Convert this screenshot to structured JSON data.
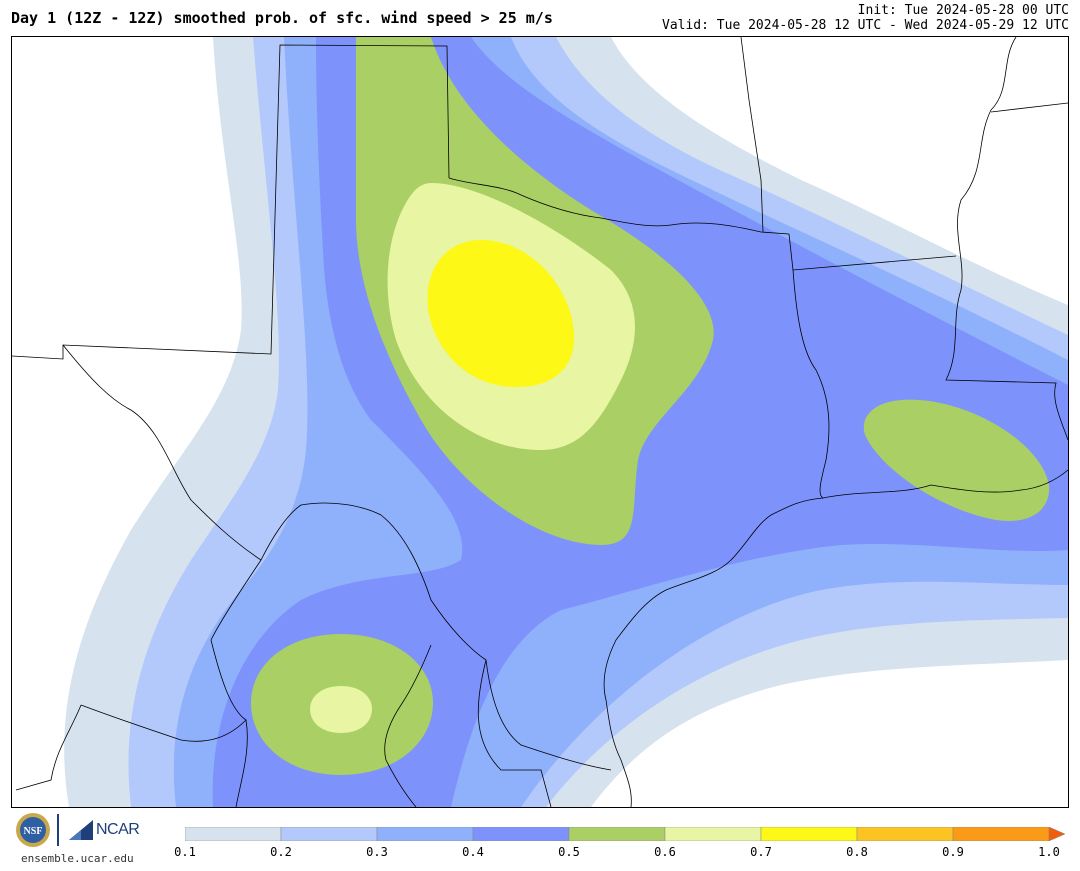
{
  "header": {
    "title": "Day 1 (12Z - 12Z) smoothed prob. of sfc. wind speed > 25 m/s",
    "init": "Init: Tue 2024-05-28 00 UTC",
    "valid": "Valid: Tue 2024-05-28 12 UTC - Wed 2024-05-29 12 UTC"
  },
  "footer": {
    "logo_nsf": "NSF",
    "logo_ncar": "NCAR",
    "site": "ensemble.ucar.edu"
  },
  "colorbar": {
    "ticks": [
      "0.1",
      "0.2",
      "0.3",
      "0.4",
      "0.5",
      "0.6",
      "0.7",
      "0.8",
      "0.9",
      "1.0"
    ],
    "colors": [
      "#d6e2ee",
      "#b3c8fb",
      "#8fb0fb",
      "#7d92fb",
      "#aacf64",
      "#e8f5a2",
      "#fdf816",
      "#fcc423",
      "#fb9a16"
    ],
    "extend_color": "#f25d0c"
  },
  "map": {
    "colors": {
      "p10": "#d6e2ee",
      "p20": "#b3c8fb",
      "p30": "#8fb0fb",
      "p40": "#7d92fb",
      "p50": "#aacf64",
      "p60": "#e8f5a2",
      "p70": "#fdf816"
    }
  }
}
